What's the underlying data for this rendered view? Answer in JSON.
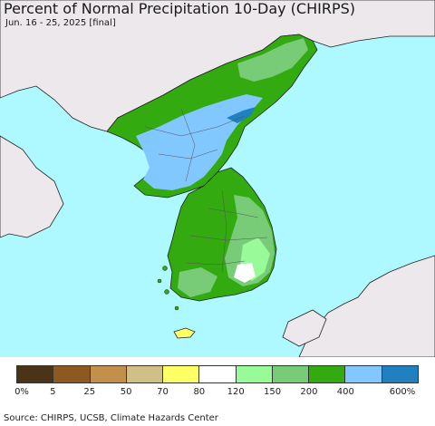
{
  "title": "Percent of Normal Precipitation 10-Day (CHIRPS)",
  "subtitle": "Jun. 16 - 25, 2025 [final]",
  "legend": {
    "colors": [
      "#4a3316",
      "#8c5a20",
      "#c2904a",
      "#d1bf88",
      "#ffff66",
      "#ffffff",
      "#98fa98",
      "#78cc78",
      "#32aa10",
      "#80c8ff",
      "#2080c0"
    ],
    "ticks": [
      "0%",
      "5",
      "25",
      "50",
      "70",
      "80",
      "120",
      "150",
      "200",
      "400",
      "600%"
    ]
  },
  "source": "Source: CHIRPS, UCSB, Climate Hazards Center",
  "colors": {
    "ocean": "#aef8ff",
    "land_outside": "#ece8ec"
  }
}
